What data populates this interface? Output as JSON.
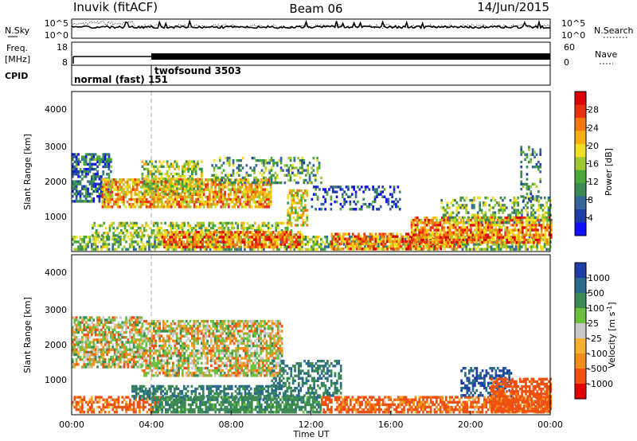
{
  "header": {
    "station": "Inuvik (fitACF)",
    "beam": "Beam 06",
    "date": "14/Jun/2015"
  },
  "noise_panel": {
    "left_label": "N.Sky",
    "right_label": "N.Search",
    "left_ticks": [
      "10^5",
      "10^0"
    ],
    "right_ticks": [
      "10^5",
      "10^0"
    ]
  },
  "freq_panel": {
    "left_label_1": "Freq.",
    "left_label_2": "[MHz]",
    "left_ticks": [
      "18",
      "8"
    ],
    "right_label": "Nave",
    "right_ticks": [
      "60",
      "0"
    ]
  },
  "cpid_panel": {
    "label": "CPID",
    "mode_1": "normal (fast) 151",
    "mode_2": "twofsound 3503"
  },
  "power_panel": {
    "ylabel": "Slant Range [km]",
    "yticks": [
      "4000",
      "3000",
      "2000",
      "1000"
    ],
    "colorbar_label": "Power [dB]",
    "colorbar_ticks": [
      "28",
      "24",
      "20",
      "16",
      "12",
      "8",
      "4"
    ]
  },
  "velocity_panel": {
    "ylabel": "Slant Range [km]",
    "yticks": [
      "4000",
      "3000",
      "2000",
      "1000"
    ],
    "colorbar_label": "Velocity [m s",
    "colorbar_sup": "-1",
    "colorbar_label_end": "]",
    "colorbar_ticks": [
      "1000",
      "500",
      "100",
      "25",
      "-25",
      "-100",
      "-500",
      "-1000"
    ]
  },
  "xaxis": {
    "label": "Time UT",
    "ticks": [
      "00:00",
      "04:00",
      "08:00",
      "12:00",
      "16:00",
      "20:00",
      "00:00"
    ]
  },
  "chart_data": [
    {
      "type": "heatmap",
      "title": "Power [dB]",
      "xlabel": "Time UT",
      "ylabel": "Slant Range [km]",
      "x_range_hours": [
        0,
        24
      ],
      "ylim": [
        180,
        4600
      ],
      "zlim": [
        0,
        32
      ],
      "colorbar_ticks": [
        4,
        8,
        12,
        16,
        20,
        24,
        28
      ],
      "colors": [
        "#1010ff",
        "#1f3da6",
        "#35669a",
        "#3b8a52",
        "#4aa83a",
        "#a0c830",
        "#f0e020",
        "#f5b010",
        "#f07810",
        "#e83010",
        "#d80000"
      ],
      "regions": [
        {
          "t0": 0.0,
          "t1": 24.0,
          "r0": 250,
          "r1": 620,
          "power": 14,
          "density": 0.65
        },
        {
          "t0": 0.0,
          "t1": 2.0,
          "r0": 1600,
          "r1": 2900,
          "power": 8,
          "density": 0.6
        },
        {
          "t0": 1.5,
          "t1": 10.0,
          "r0": 1400,
          "r1": 2200,
          "power": 22,
          "density": 0.75
        },
        {
          "t0": 3.5,
          "t1": 6.5,
          "r0": 1800,
          "r1": 2700,
          "power": 16,
          "density": 0.55
        },
        {
          "t0": 1.0,
          "t1": 11.0,
          "r0": 650,
          "r1": 1000,
          "power": 16,
          "density": 0.55
        },
        {
          "t0": 4.5,
          "t1": 11.5,
          "r0": 280,
          "r1": 750,
          "power": 24,
          "density": 0.75
        },
        {
          "t0": 7.0,
          "t1": 12.5,
          "r0": 2100,
          "r1": 2800,
          "power": 12,
          "density": 0.35
        },
        {
          "t0": 10.8,
          "t1": 11.8,
          "r0": 900,
          "r1": 1900,
          "power": 18,
          "density": 0.55
        },
        {
          "t0": 12.0,
          "t1": 16.5,
          "r0": 1350,
          "r1": 2000,
          "power": 6,
          "density": 0.3
        },
        {
          "t0": 13.0,
          "t1": 19.5,
          "r0": 280,
          "r1": 700,
          "power": 24,
          "density": 0.7
        },
        {
          "t0": 17.0,
          "t1": 24.0,
          "r0": 450,
          "r1": 1150,
          "power": 24,
          "density": 0.75
        },
        {
          "t0": 18.5,
          "t1": 24.0,
          "r0": 1000,
          "r1": 1700,
          "power": 14,
          "density": 0.45
        },
        {
          "t0": 22.5,
          "t1": 23.5,
          "r0": 1600,
          "r1": 3100,
          "power": 10,
          "density": 0.3
        }
      ]
    },
    {
      "type": "heatmap",
      "title": "Velocity [m s-1]",
      "xlabel": "Time UT",
      "ylabel": "Slant Range [km]",
      "x_range_hours": [
        0,
        24
      ],
      "ylim": [
        180,
        4600
      ],
      "zlim": [
        -1200,
        1200
      ],
      "colorbar_ticks": [
        -1000,
        -500,
        -100,
        -25,
        25,
        100,
        500,
        1000
      ],
      "colors": [
        "#e00000",
        "#f05010",
        "#f08c1a",
        "#f5b030",
        "#c8c8c8",
        "#6cc040",
        "#3a8a52",
        "#2a6a8a",
        "#1f3da6"
      ],
      "regions": [
        {
          "t0": 0.0,
          "t1": 4.5,
          "r0": 250,
          "r1": 700,
          "velocity": -150,
          "density": 0.55
        },
        {
          "t0": 0.0,
          "t1": 3.5,
          "r0": 1500,
          "r1": 2900,
          "velocity": 0,
          "density": 0.7
        },
        {
          "t0": 3.5,
          "t1": 10.5,
          "r0": 1300,
          "r1": 2800,
          "velocity": 0,
          "density": 0.7
        },
        {
          "t0": 3.0,
          "t1": 11.0,
          "r0": 600,
          "r1": 1000,
          "velocity": 300,
          "density": 0.55
        },
        {
          "t0": 4.0,
          "t1": 12.5,
          "r0": 280,
          "r1": 700,
          "velocity": 200,
          "density": 0.75
        },
        {
          "t0": 10.0,
          "t1": 13.5,
          "r0": 700,
          "r1": 1700,
          "velocity": 300,
          "density": 0.45
        },
        {
          "t0": 12.5,
          "t1": 24.0,
          "r0": 280,
          "r1": 700,
          "velocity": -150,
          "density": 0.7
        },
        {
          "t0": 19.5,
          "t1": 22.0,
          "r0": 700,
          "r1": 1500,
          "velocity": 600,
          "density": 0.5
        },
        {
          "t0": 21.0,
          "t1": 24.0,
          "r0": 250,
          "r1": 1200,
          "velocity": -200,
          "density": 0.7
        }
      ]
    }
  ]
}
